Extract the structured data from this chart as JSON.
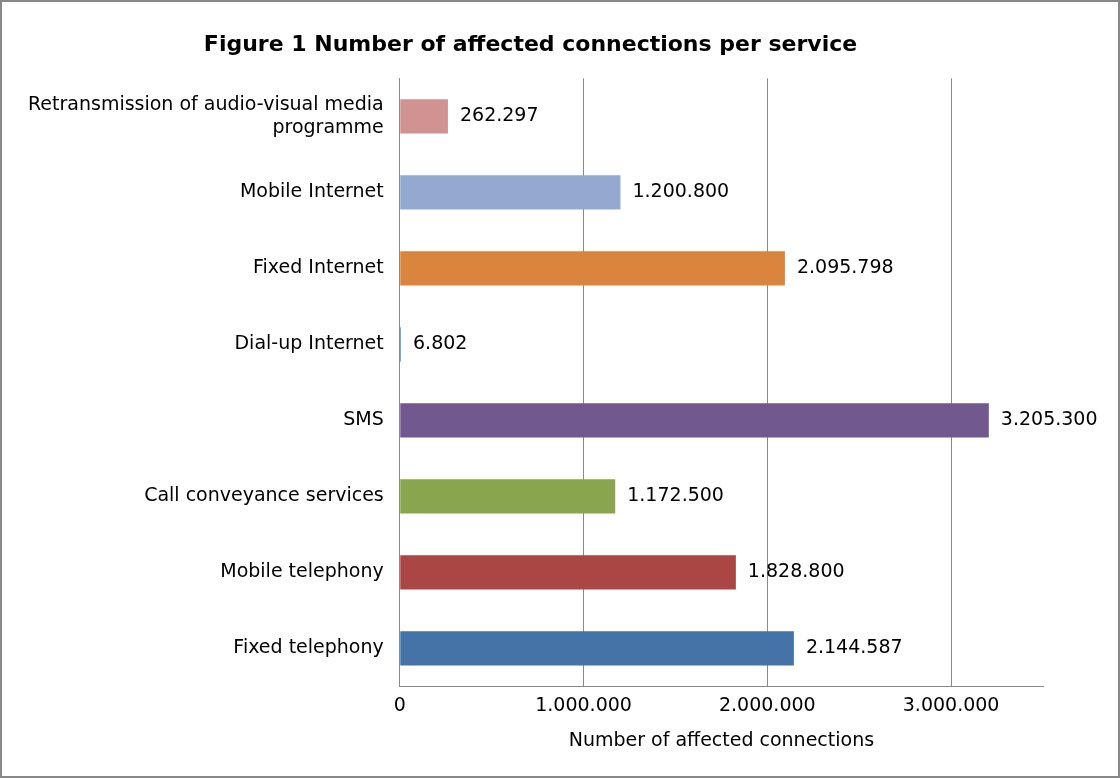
{
  "chart_data": {
    "type": "bar",
    "orientation": "horizontal",
    "title": "Figure 1 Number of affected connections per service",
    "xlabel": "Number of affected connections",
    "categories": [
      "Retransmission of audio-visual media programme",
      "Mobile Internet",
      "Fixed Internet",
      "Dial-up Internet",
      "SMS",
      "Call conveyance services",
      "Mobile telephony",
      "Fixed telephony"
    ],
    "values": [
      262297,
      1200800,
      2095798,
      6802,
      3205300,
      1172500,
      1828800,
      2144587
    ],
    "value_labels": [
      "262.297",
      "1.200.800",
      "2.095.798",
      "6.802",
      "3.205.300",
      "1.172.500",
      "1.828.800",
      "2.144.587"
    ],
    "colors": [
      "#d19392",
      "#93a9cf",
      "#db843d",
      "#4198af",
      "#71588f",
      "#89a54e",
      "#aa4643",
      "#4572a7"
    ],
    "xlim": [
      0,
      3500000
    ],
    "xticks": [
      0,
      {
        "value": 1000000,
        "label": "1.000.000"
      },
      {
        "value": 2000000,
        "label": "2.000.000"
      },
      {
        "value": 3000000,
        "label": "3.000.000"
      }
    ],
    "grid": "x",
    "legend": false
  }
}
